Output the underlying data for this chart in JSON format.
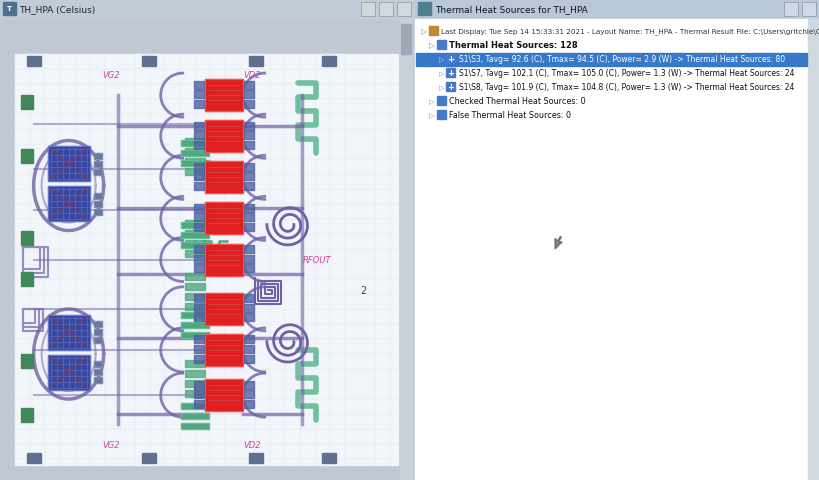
{
  "fig_width": 8.2,
  "fig_height": 4.81,
  "dpi": 100,
  "bg_color": "#c8c8c8",
  "left_panel": {
    "title": "TH_HPA (Celsius)",
    "title_bar_color": "#d4dce8",
    "bg_color": "#f0f4f8",
    "layout_bg": "#f8fafc"
  },
  "right_panel": {
    "title": "Thermal Heat Sources for TH_HPA",
    "title_bar_color": "#c8d4e0",
    "bg_color": "#ffffff"
  },
  "tree_items": {
    "root_text": "Last Display: Tue Sep 14 15:33:31 2021 - Layout Name: TH_HPA - Thermal Result File: C:\\Users\\gritchie\\OneDrive - Cadence Design",
    "thermal_sources_header": "Thermal Heat Sources: 128",
    "items": [
      {
        "text": "S1\\S3, Tavg= 92.6 (C), Tmax= 94.5 (C), Power= 2.9 (W) -> Thermal Heat Sources: 80",
        "selected": true
      },
      {
        "text": "S1\\S7, Tavg= 102.1 (C), Tmax= 105.0 (C), Power= 1.3 (W) -> Thermal Heat Sources: 24",
        "selected": false
      },
      {
        "text": "S1\\S8, Tavg= 101.9 (C), Tmax= 104.8 (C), Power= 1.3 (W) -> Thermal Heat Sources: 24",
        "selected": false
      }
    ],
    "checked_sources": "Checked Thermal Heat Sources: 0",
    "false_sources": "False Thermal Heat Sources: 0"
  },
  "selection_color": "#3878c8",
  "colors": {
    "purple": "#7060a8",
    "teal": "#48a888",
    "teal2": "#60b898",
    "blue_chip": "#4858a0",
    "blue_chip_dark": "#303870",
    "red": "#e02020",
    "magenta": "#d040a0",
    "gray_pad": "#7080a0",
    "light_purple": "#9890c0"
  }
}
